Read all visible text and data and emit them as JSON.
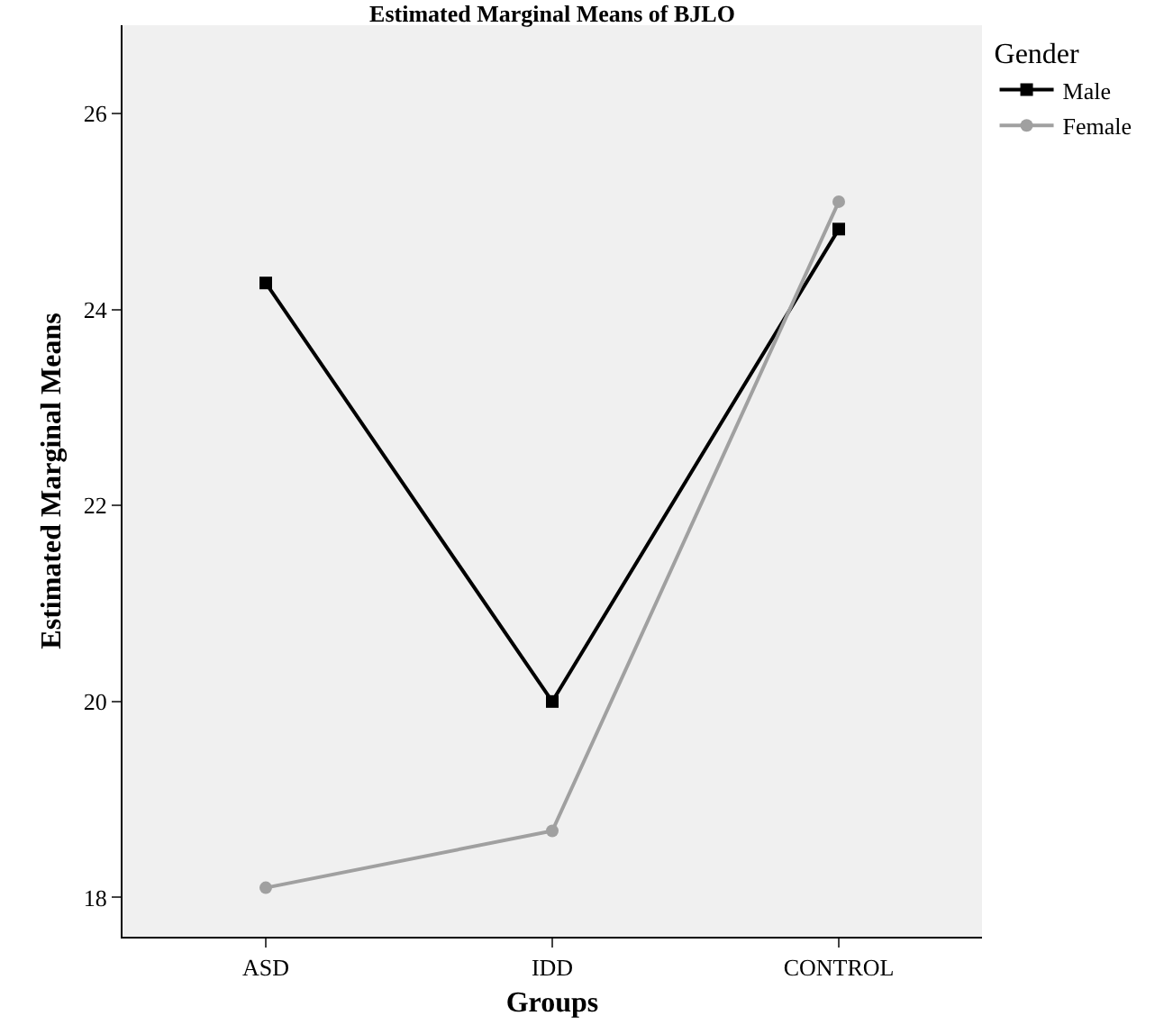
{
  "chart_data": {
    "type": "line",
    "title": "Estimated Marginal Means of BJLO",
    "xlabel": "Groups",
    "ylabel": "Estimated Marginal Means",
    "legend_title": "Gender",
    "categories": [
      "ASD",
      "IDD",
      "CONTROL"
    ],
    "series": [
      {
        "name": "Male",
        "color": "#000000",
        "marker": "square",
        "values": [
          24.27,
          20.0,
          24.82
        ]
      },
      {
        "name": "Female",
        "color": "#a0a0a0",
        "marker": "circle",
        "values": [
          18.1,
          18.68,
          25.1
        ]
      }
    ],
    "ylim": [
      17.6,
      26.9
    ],
    "yticks": [
      18,
      20,
      22,
      24,
      26
    ],
    "grid": false,
    "legend": "top right"
  }
}
